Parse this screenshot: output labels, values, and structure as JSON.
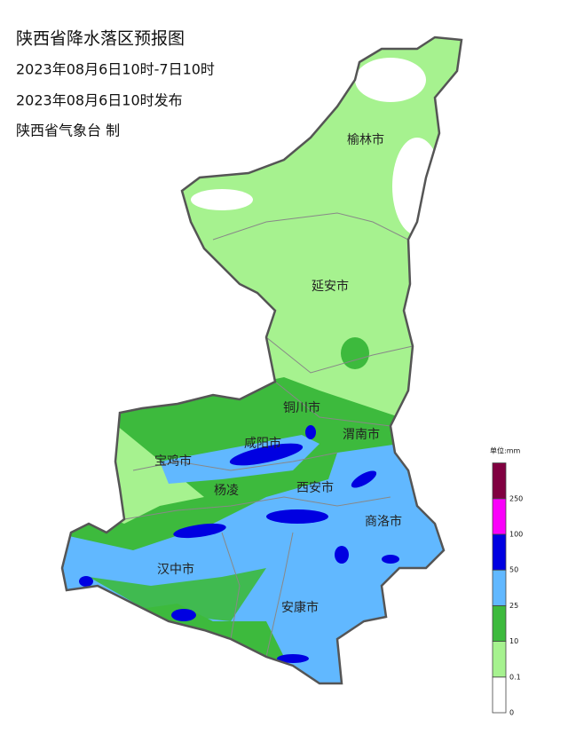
{
  "header": {
    "title": "陕西省降水落区预报图",
    "period": "2023年08月6日10时-7日10时",
    "issued": "2023年08月6日10时发布",
    "author": "陕西省气象台 制"
  },
  "cities": [
    {
      "label": "榆林市"
    },
    {
      "label": "延安市"
    },
    {
      "label": "铜川市"
    },
    {
      "label": "渭南市"
    },
    {
      "label": "咸阳市"
    },
    {
      "label": "宝鸡市"
    },
    {
      "label": "西安市"
    },
    {
      "label": "杨凌"
    },
    {
      "label": "商洛市"
    },
    {
      "label": "汉中市"
    },
    {
      "label": "安康市"
    }
  ],
  "legend": {
    "title": "单位:mm",
    "ticks": [
      0,
      0.1,
      10,
      25,
      50,
      100,
      250
    ],
    "colors": [
      "#ffffff",
      "#a6f28f",
      "#3dba3d",
      "#61b8ff",
      "#0000e1",
      "#fa00fa",
      "#800040"
    ]
  }
}
